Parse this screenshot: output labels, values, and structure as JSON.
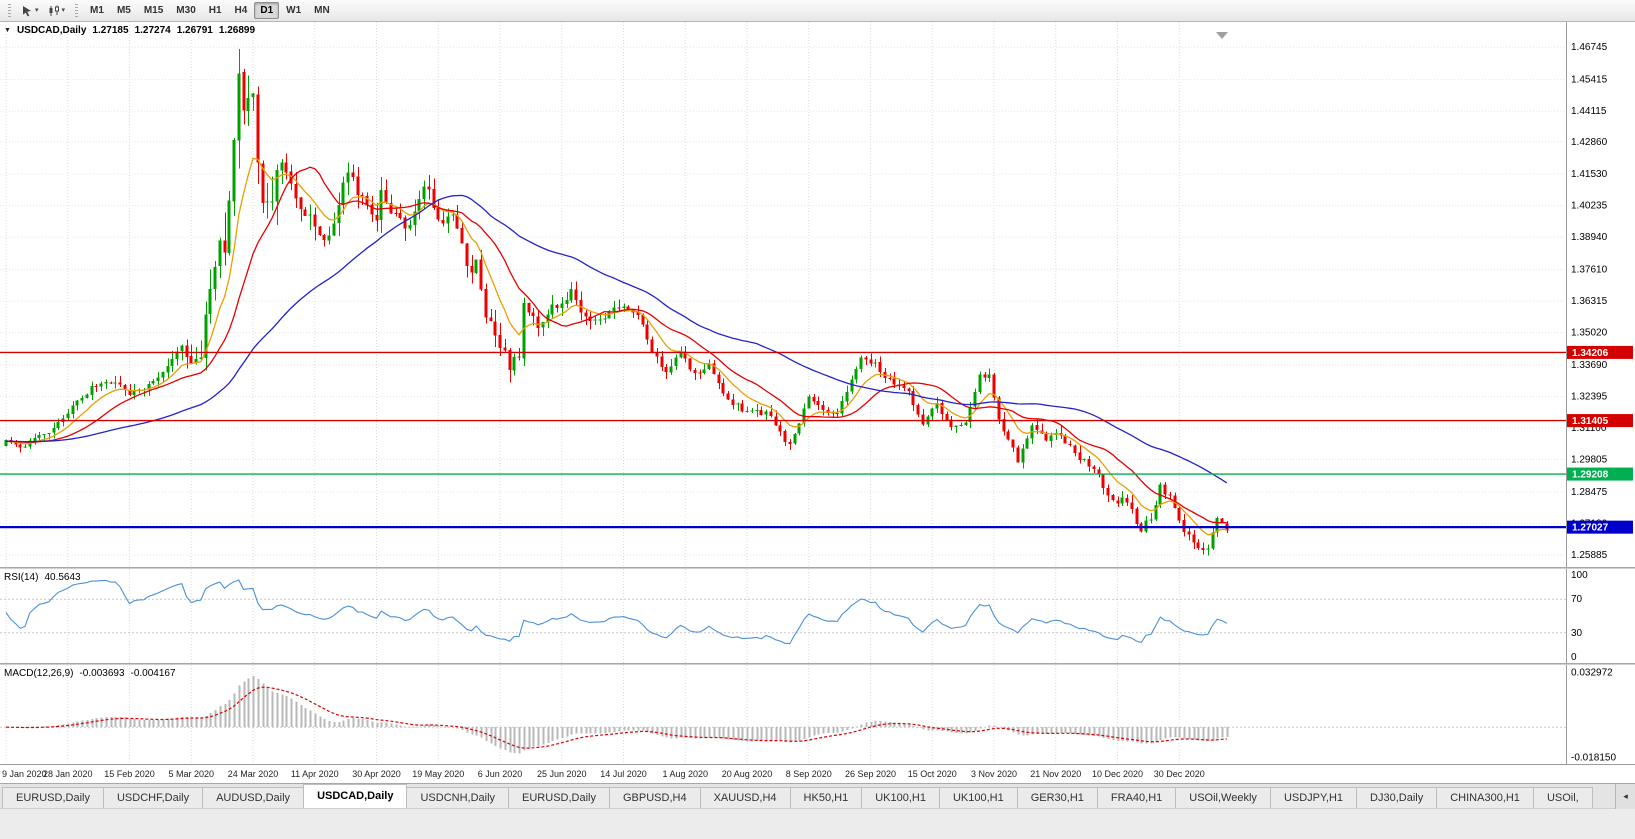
{
  "icons": {
    "caret_down": "▾",
    "collapse_triangle": "▼",
    "tab_scroll_left": "◂"
  },
  "toolbar": {
    "timeframes": [
      {
        "label": "M1",
        "active": false
      },
      {
        "label": "M5",
        "active": false
      },
      {
        "label": "M15",
        "active": false
      },
      {
        "label": "M30",
        "active": false
      },
      {
        "label": "H1",
        "active": false
      },
      {
        "label": "H4",
        "active": false
      },
      {
        "label": "D1",
        "active": true
      },
      {
        "label": "W1",
        "active": false
      },
      {
        "label": "MN",
        "active": false
      }
    ]
  },
  "price_pane": {
    "title": "USDCAD,Daily",
    "ohlc": {
      "open": "1.27185",
      "high": "1.27274",
      "low": "1.26791",
      "close": "1.26899"
    },
    "axis_labels": [
      "1.46745",
      "1.45415",
      "1.44115",
      "1.42860",
      "1.41530",
      "1.40235",
      "1.38940",
      "1.37610",
      "1.36315",
      "1.35020",
      "1.33690",
      "1.32395",
      "1.31100",
      "1.29805",
      "1.28475",
      "1.27180",
      "1.25885"
    ],
    "levels": [
      {
        "label": "1.34206",
        "price": 1.34206,
        "color": "#d40000",
        "width": 1.4
      },
      {
        "label": "1.31405",
        "price": 1.31405,
        "color": "#d40000",
        "width": 1.4
      },
      {
        "label": "1.29208",
        "price": 1.29208,
        "color": "#00b050",
        "width": 1.4
      },
      {
        "label": "1.27027",
        "price": 1.27027,
        "color": "#0000cc",
        "width": 2.2
      }
    ]
  },
  "rsi_pane": {
    "label": "RSI(14)",
    "value": "40.5643",
    "axis_labels": [
      "100",
      "70",
      "30",
      "0"
    ],
    "guide_levels": [
      70,
      30
    ],
    "line_color": "#4a90d9"
  },
  "macd_pane": {
    "label": "MACD(12,26,9)",
    "value_main": "-0.003693",
    "value_signal": "-0.004167",
    "axis_top": "0.032972",
    "axis_bottom": "-0.018150",
    "scale": [
      -0.0186,
      0.034
    ],
    "histogram_color": "#b8b8b8",
    "signal_color": "#e00000"
  },
  "date_axis": {
    "labels": [
      "9 Jan 2020",
      "28 Jan 2020",
      "15 Feb 2020",
      "5 Mar 2020",
      "24 Mar 2020",
      "11 Apr 2020",
      "30 Apr 2020",
      "19 May 2020",
      "6 Jun 2020",
      "25 Jun 2020",
      "14 Jul 2020",
      "1 Aug 2020",
      "20 Aug 2020",
      "8 Sep 2020",
      "26 Sep 2020",
      "15 Oct 2020",
      "3 Nov 2020",
      "21 Nov 2020",
      "10 Dec 2020",
      "30 Dec 2020"
    ]
  },
  "tabs": [
    {
      "label": "EURUSD,Daily",
      "active": false
    },
    {
      "label": "USDCHF,Daily",
      "active": false
    },
    {
      "label": "AUDUSD,Daily",
      "active": false
    },
    {
      "label": "USDCAD,Daily",
      "active": true
    },
    {
      "label": "USDCNH,Daily",
      "active": false
    },
    {
      "label": "EURUSD,Daily",
      "active": false
    },
    {
      "label": "GBPUSD,H4",
      "active": false
    },
    {
      "label": "XAUUSD,H4",
      "active": false
    },
    {
      "label": "HK50,H1",
      "active": false
    },
    {
      "label": "UK100,H1",
      "active": false
    },
    {
      "label": "UK100,H1",
      "active": false
    },
    {
      "label": "GER30,H1",
      "active": false
    },
    {
      "label": "FRA40,H1",
      "active": false
    },
    {
      "label": "USOil,Weekly",
      "active": false
    },
    {
      "label": "USDJPY,H1",
      "active": false
    },
    {
      "label": "DJ30,Daily",
      "active": false
    },
    {
      "label": "CHINA300,H1",
      "active": false
    },
    {
      "label": "USOil,",
      "active": false
    }
  ],
  "chart_data": {
    "type": "candlestick",
    "symbol": "USDCAD",
    "timeframe": "Daily",
    "bar_count": 258,
    "seed": 20210108,
    "price_window": [
      1.2539,
      1.4778
    ],
    "last_ohlc": [
      1.27185,
      1.27274,
      1.26791,
      1.26899
    ],
    "forced_high": {
      "bar": 49,
      "price": 1.4668
    },
    "forced_low": {
      "bar": 252,
      "price": 1.259
    },
    "close_path": [
      [
        0,
        1.3055
      ],
      [
        4,
        1.3035
      ],
      [
        7,
        1.309
      ],
      [
        10,
        1.3105
      ],
      [
        13,
        1.317
      ],
      [
        16,
        1.3235
      ],
      [
        19,
        1.329
      ],
      [
        23,
        1.329
      ],
      [
        26,
        1.3245
      ],
      [
        29,
        1.327
      ],
      [
        32,
        1.331
      ],
      [
        35,
        1.34
      ],
      [
        37,
        1.3445
      ],
      [
        39,
        1.338
      ],
      [
        41,
        1.342
      ],
      [
        43,
        1.366
      ],
      [
        45,
        1.39
      ],
      [
        46,
        1.385
      ],
      [
        47,
        1.405
      ],
      [
        48,
        1.435
      ],
      [
        49,
        1.452
      ],
      [
        50,
        1.444
      ],
      [
        51,
        1.448
      ],
      [
        52,
        1.444
      ],
      [
        53,
        1.418
      ],
      [
        55,
        1.399
      ],
      [
        57,
        1.415
      ],
      [
        58,
        1.42
      ],
      [
        60,
        1.414
      ],
      [
        62,
        1.4
      ],
      [
        64,
        1.396
      ],
      [
        66,
        1.39
      ],
      [
        68,
        1.389
      ],
      [
        70,
        1.403
      ],
      [
        72,
        1.417
      ],
      [
        74,
        1.408
      ],
      [
        76,
        1.402
      ],
      [
        78,
        1.395
      ],
      [
        79,
        1.407
      ],
      [
        81,
        1.4
      ],
      [
        83,
        1.397
      ],
      [
        85,
        1.393
      ],
      [
        87,
        1.406
      ],
      [
        89,
        1.411
      ],
      [
        91,
        1.395
      ],
      [
        93,
        1.3985
      ],
      [
        95,
        1.395
      ],
      [
        97,
        1.376
      ],
      [
        99,
        1.378
      ],
      [
        101,
        1.358
      ],
      [
        103,
        1.35
      ],
      [
        105,
        1.342
      ],
      [
        106,
        1.337
      ],
      [
        108,
        1.342
      ],
      [
        109,
        1.363
      ],
      [
        111,
        1.355
      ],
      [
        113,
        1.353
      ],
      [
        115,
        1.361
      ],
      [
        117,
        1.363
      ],
      [
        119,
        1.367
      ],
      [
        121,
        1.359
      ],
      [
        124,
        1.3545
      ],
      [
        127,
        1.359
      ],
      [
        130,
        1.362
      ],
      [
        133,
        1.358
      ],
      [
        136,
        1.341
      ],
      [
        139,
        1.335
      ],
      [
        142,
        1.342
      ],
      [
        145,
        1.333
      ],
      [
        148,
        1.338
      ],
      [
        151,
        1.325
      ],
      [
        154,
        1.32
      ],
      [
        157,
        1.317
      ],
      [
        160,
        1.318
      ],
      [
        163,
        1.309
      ],
      [
        165,
        1.304
      ],
      [
        167,
        1.313
      ],
      [
        169,
        1.323
      ],
      [
        172,
        1.318
      ],
      [
        175,
        1.316
      ],
      [
        178,
        1.331
      ],
      [
        180,
        1.34
      ],
      [
        183,
        1.338
      ],
      [
        185,
        1.332
      ],
      [
        187,
        1.329
      ],
      [
        190,
        1.326
      ],
      [
        193,
        1.312
      ],
      [
        196,
        1.321
      ],
      [
        199,
        1.312
      ],
      [
        202,
        1.313
      ],
      [
        205,
        1.332
      ],
      [
        207,
        1.332
      ],
      [
        209,
        1.314
      ],
      [
        211,
        1.306
      ],
      [
        213,
        1.298
      ],
      [
        216,
        1.313
      ],
      [
        219,
        1.307
      ],
      [
        222,
        1.309
      ],
      [
        225,
        1.3
      ],
      [
        228,
        1.296
      ],
      [
        230,
        1.292
      ],
      [
        231,
        1.287
      ],
      [
        233,
        1.28
      ],
      [
        235,
        1.282
      ],
      [
        237,
        1.277
      ],
      [
        239,
        1.269
      ],
      [
        241,
        1.274
      ],
      [
        243,
        1.287
      ],
      [
        245,
        1.283
      ],
      [
        247,
        1.272
      ],
      [
        249,
        1.267
      ],
      [
        251,
        1.263
      ],
      [
        253,
        1.261
      ],
      [
        255,
        1.273
      ],
      [
        256,
        1.2718
      ],
      [
        257,
        1.269
      ]
    ],
    "volatility_path": [
      [
        0,
        0.0042
      ],
      [
        20,
        0.0048
      ],
      [
        36,
        0.006
      ],
      [
        42,
        0.015
      ],
      [
        47,
        0.023
      ],
      [
        50,
        0.026
      ],
      [
        54,
        0.023
      ],
      [
        58,
        0.016
      ],
      [
        64,
        0.012
      ],
      [
        75,
        0.0105
      ],
      [
        90,
        0.0085
      ],
      [
        100,
        0.009
      ],
      [
        108,
        0.0095
      ],
      [
        116,
        0.007
      ],
      [
        130,
        0.0058
      ],
      [
        145,
        0.0055
      ],
      [
        160,
        0.005
      ],
      [
        175,
        0.0052
      ],
      [
        185,
        0.0048
      ],
      [
        200,
        0.005
      ],
      [
        213,
        0.0058
      ],
      [
        228,
        0.0052
      ],
      [
        240,
        0.006
      ],
      [
        250,
        0.0055
      ],
      [
        257,
        0.0045
      ]
    ],
    "moving_averages": [
      {
        "name": "ma-fast",
        "type": "ema",
        "period": 9,
        "color": "#e8a000"
      },
      {
        "name": "ma-mid",
        "type": "sma",
        "period": 18,
        "color": "#e60000"
      },
      {
        "name": "ma-slow",
        "type": "sma",
        "period": 50,
        "color": "#2222cc"
      }
    ],
    "bull_color": "#00a000",
    "bear_color": "#ee0000"
  }
}
